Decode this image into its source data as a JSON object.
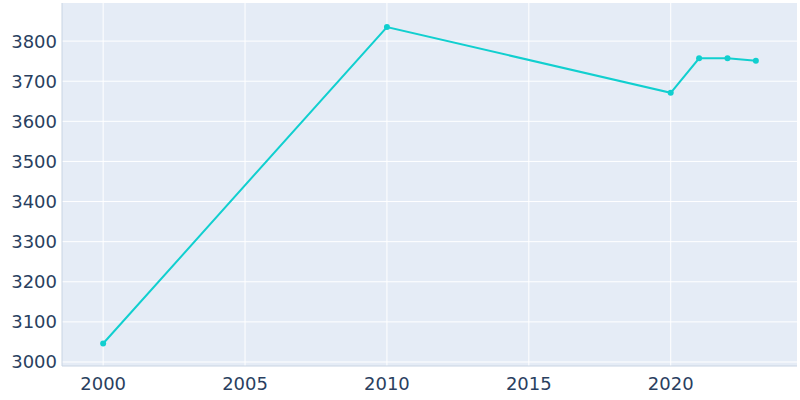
{
  "chart_data": {
    "type": "line",
    "x": [
      2000,
      2010,
      2020,
      2021,
      2022,
      2023
    ],
    "values": [
      3046,
      3835,
      3671,
      3757,
      3757,
      3751
    ],
    "color": "#11cfcf",
    "marker": "circle",
    "xlim": [
      1998.55,
      2024.45
    ],
    "xticks": [
      2000,
      2005,
      2010,
      2015,
      2020
    ],
    "ylim": [
      2990,
      3895
    ],
    "yticks": [
      3000,
      3100,
      3200,
      3300,
      3400,
      3500,
      3600,
      3700,
      3800
    ],
    "grid": true
  }
}
